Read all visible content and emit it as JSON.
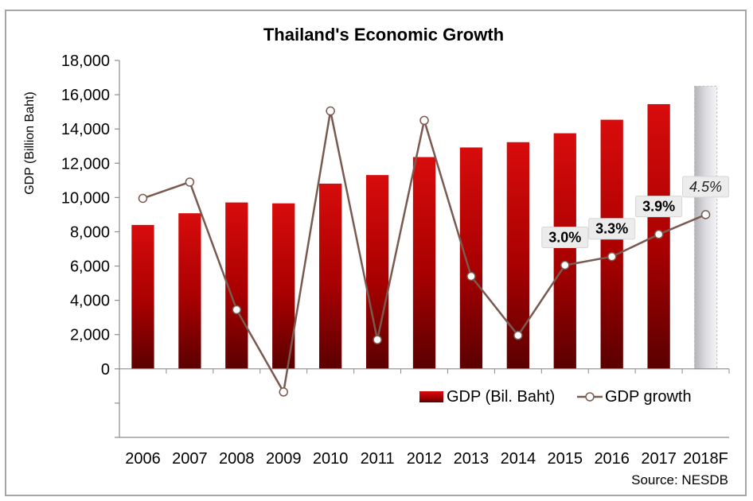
{
  "chart_data": {
    "type": "bar",
    "title": "Thailand's Economic Growth",
    "ylabel": "GDP (Billion Baht)",
    "xlabel": "",
    "categories": [
      "2006",
      "2007",
      "2008",
      "2009",
      "2010",
      "2011",
      "2012",
      "2013",
      "2014",
      "2015",
      "2016",
      "2017",
      "2018F"
    ],
    "ylim": [
      -4000,
      18000
    ],
    "yticks": [
      0,
      2000,
      4000,
      6000,
      8000,
      10000,
      12000,
      14000,
      16000,
      18000
    ],
    "ytick_labels": [
      "0",
      "2,000",
      "4,000",
      "6,000",
      "8,000",
      "10,000",
      "12,000",
      "14,000",
      "16,000",
      "18,000"
    ],
    "grid": false,
    "legend_position": "bottom-right",
    "series": [
      {
        "name": "GDP (Bil. Baht)",
        "type": "bar",
        "color": "#c00000",
        "values": [
          8400,
          9080,
          9710,
          9660,
          10810,
          11310,
          12360,
          12920,
          13230,
          13750,
          14540,
          15450,
          null
        ]
      },
      {
        "name": "GDP (Bil. Baht) forecast",
        "type": "bar",
        "color": "#c8c8cc",
        "values": [
          null,
          null,
          null,
          null,
          null,
          null,
          null,
          null,
          null,
          null,
          null,
          null,
          16500
        ]
      },
      {
        "name": "GDP growth",
        "type": "line",
        "color": "#7a5a50",
        "values": [
          5.0,
          5.4,
          1.7,
          -0.7,
          7.5,
          0.8,
          7.2,
          2.7,
          1.0,
          3.0,
          3.3,
          3.9,
          4.5
        ],
        "display_values": [
          9950,
          10900,
          3450,
          -1350,
          15050,
          1700,
          14500,
          5400,
          1950,
          6050,
          6550,
          7850,
          9000
        ]
      }
    ],
    "data_labels": [
      {
        "category": "2015",
        "text": "3.0%"
      },
      {
        "category": "2016",
        "text": "3.3%"
      },
      {
        "category": "2017",
        "text": "3.9%"
      },
      {
        "category": "2018F",
        "text": "4.5%"
      }
    ],
    "source": "Source: NESDB"
  }
}
